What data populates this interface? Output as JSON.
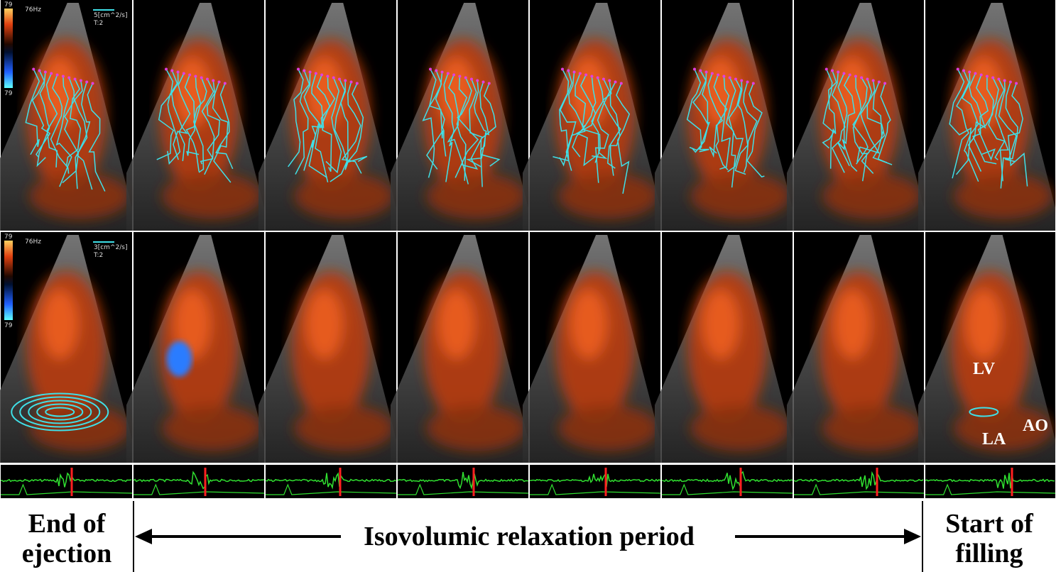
{
  "overlay_row1": {
    "frame_rate": "76Hz",
    "scale_top": "79",
    "scale_bottom": "79",
    "scale_label": "5[cm^2/s]",
    "time_label": "T:2"
  },
  "overlay_row2": {
    "frame_rate": "76Hz",
    "scale_top": "79",
    "scale_bottom": "79",
    "scale_label": "3[cm^2/s]",
    "time_label": "T:2"
  },
  "anatomy": {
    "lv": "LV",
    "ao": "AO",
    "la": "LA"
  },
  "phases": {
    "start": [
      "End of",
      "ejection"
    ],
    "middle": "Isovolumic relaxation period",
    "end": [
      "Start of",
      "filling"
    ]
  }
}
